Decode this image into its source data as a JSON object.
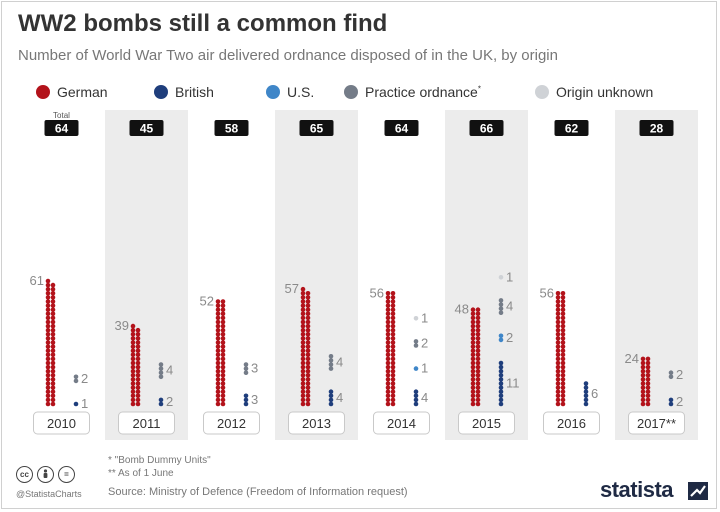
{
  "header": {
    "title": "WW2 bombs still a common find",
    "subtitle": "Number of World War Two air delivered ordnance disposed of in the UK, by origin"
  },
  "legend": [
    {
      "label": "German",
      "color": "#b3131b"
    },
    {
      "label": "British",
      "color": "#1f3e7c"
    },
    {
      "label": "U.S.",
      "color": "#3f86c8"
    },
    {
      "label": "Practice ordnance",
      "sup": "*",
      "color": "#747c88"
    },
    {
      "label": "Origin unknown",
      "color": "#cfd2d6"
    }
  ],
  "chart_data": {
    "type": "bar",
    "style": "stacked dot columns (one dot per ordnance item)",
    "categories": [
      "2010",
      "2011",
      "2012",
      "2013",
      "2014",
      "2015",
      "2016",
      "2017**"
    ],
    "total_header": "Total",
    "totals": [
      64,
      45,
      58,
      65,
      64,
      66,
      62,
      28
    ],
    "series": [
      {
        "name": "German",
        "color": "#b3131b",
        "values": [
          61,
          39,
          52,
          57,
          56,
          48,
          56,
          24
        ]
      },
      {
        "name": "British",
        "color": "#1f3e7c",
        "values": [
          1,
          2,
          3,
          4,
          4,
          11,
          6,
          2
        ]
      },
      {
        "name": "U.S.",
        "color": "#3f86c8",
        "values": [
          0,
          0,
          0,
          0,
          1,
          2,
          0,
          0
        ]
      },
      {
        "name": "Practice ordnance",
        "color": "#747c88",
        "values": [
          2,
          4,
          3,
          4,
          2,
          4,
          0,
          2
        ]
      },
      {
        "name": "Origin unknown",
        "color": "#cfd2d6",
        "values": [
          0,
          0,
          0,
          0,
          1,
          1,
          0,
          0
        ]
      }
    ],
    "shaded_columns": [
      "2011",
      "2013",
      "2015",
      "2017**"
    ],
    "legend_position": "top"
  },
  "footnotes": {
    "line1": "*  \"Bomb Dummy Units\"",
    "line2": "** As of 1 June"
  },
  "source": "Source: Ministry of Defence (Freedom of Information request)",
  "branding": {
    "handle": "@StatistaCharts",
    "name": "statista",
    "cc_icons": [
      "cc",
      "by",
      "="
    ]
  },
  "colors": {
    "total_badge": "#111111",
    "column_shade": "#ececec",
    "value_label": "#8a8a8a"
  }
}
